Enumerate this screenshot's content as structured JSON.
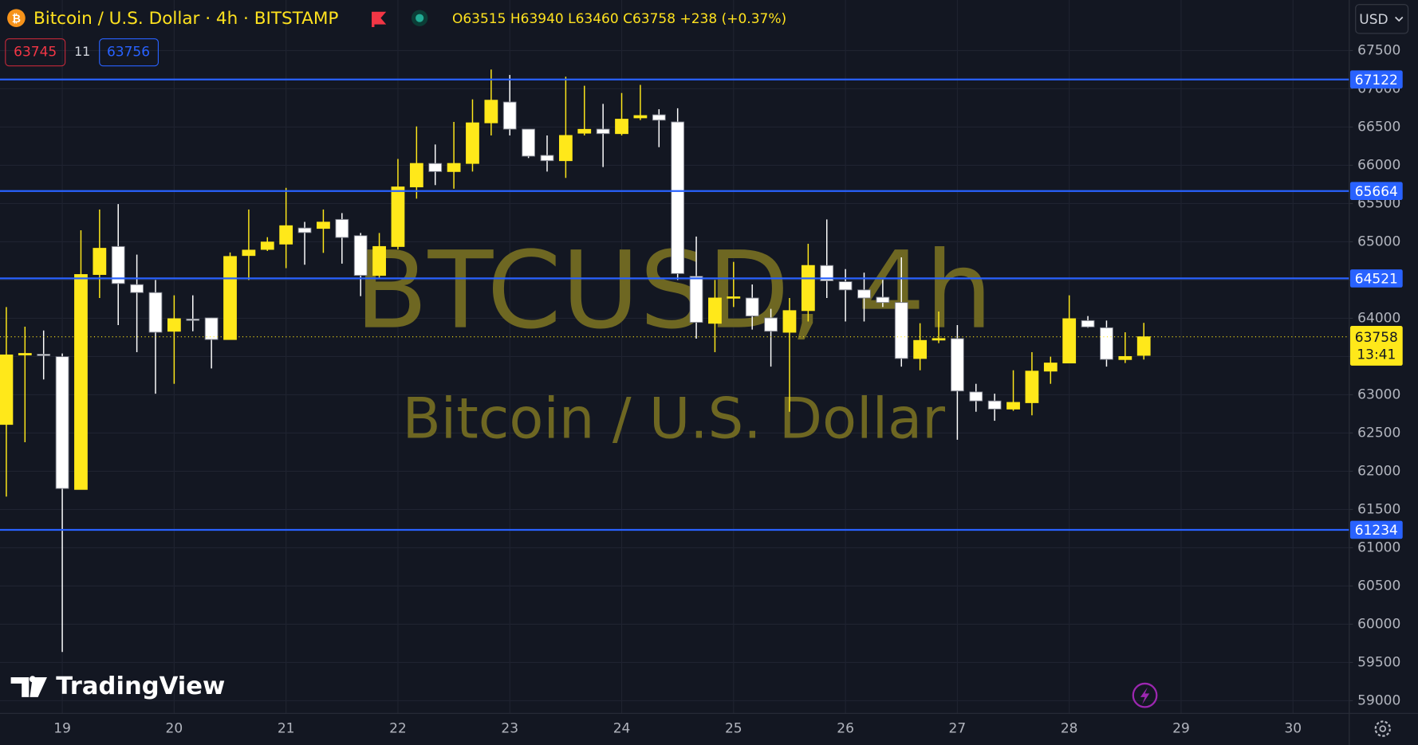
{
  "header": {
    "title": "Bitcoin / U.S. Dollar · 4h · BITSTAMP",
    "ohlc": "O63515 H63940 L63460 C63758 +238 (+0.37%)",
    "bid": "63745",
    "spread": "11",
    "ask": "63756",
    "currency": "USD",
    "brand": "TradingView"
  },
  "chart_data": {
    "type": "candlestick",
    "watermark": {
      "symbol": "BTCUSD, 4h",
      "description": "Bitcoin / U.S. Dollar"
    },
    "categories": [
      null,
      null,
      null,
      "19",
      null,
      null,
      null,
      null,
      null,
      "20",
      null,
      null,
      null,
      null,
      null,
      "21",
      null,
      null,
      null,
      null,
      null,
      "22",
      null,
      null,
      null,
      null,
      null,
      "23",
      null,
      null,
      null,
      null,
      null,
      "24",
      null,
      null,
      null,
      null,
      null,
      "25",
      null,
      null,
      null,
      null,
      null,
      "26",
      null,
      null,
      null,
      null,
      null,
      "27",
      null,
      null,
      null,
      null,
      null,
      "28",
      null,
      null,
      null,
      null,
      null,
      "29",
      null,
      null,
      null,
      null,
      null,
      "30",
      null,
      null,
      null
    ],
    "open": [
      62612,
      63520,
      63530,
      63498,
      61762,
      64572,
      64938,
      64440,
      64336,
      63830,
      63990,
      64005,
      63722,
      64820,
      64900,
      64970,
      65180,
      65175,
      65292,
      65080,
      64560,
      64938,
      65717,
      66024,
      65918,
      66024,
      66555,
      66827,
      66473,
      66130,
      66060,
      66420,
      66473,
      66414,
      66620,
      66660,
      66567,
      64548,
      63934,
      64270,
      64265,
      64005,
      63817,
      64100,
      64690,
      64478,
      64371,
      64275,
      64206,
      63474,
      63715,
      63734,
      63037,
      62919,
      62813,
      62896,
      63309,
      63415,
      63970,
      63876,
      63460,
      63515,
      null,
      null,
      null,
      null,
      null,
      null,
      null,
      null,
      null,
      null,
      null
    ],
    "high": [
      64147,
      63890,
      63840,
      63540,
      65151,
      65422,
      65493,
      64832,
      64501,
      64300,
      64300,
      64010,
      64860,
      65422,
      65060,
      65705,
      65260,
      65422,
      65375,
      65115,
      65115,
      66083,
      66508,
      66272,
      66567,
      66862,
      67252,
      67181,
      66473,
      66390,
      67158,
      67040,
      66803,
      66945,
      67051,
      66733,
      66745,
      65068,
      64501,
      64737,
      64442,
      64123,
      64265,
      64974,
      65292,
      64643,
      64596,
      64501,
      64796,
      63935,
      64088,
      63911,
      63143,
      63014,
      63320,
      63557,
      63498,
      64300,
      64029,
      63970,
      63817,
      63940,
      null,
      null,
      null,
      null,
      null,
      null,
      null,
      null,
      null,
      null,
      null
    ],
    "low": [
      61668,
      62380,
      63200,
      59637,
      61762,
      64265,
      63911,
      63557,
      63014,
      63143,
      63830,
      63344,
      63720,
      64501,
      64880,
      64655,
      64700,
      64855,
      64714,
      64289,
      64525,
      64900,
      65564,
      65741,
      65694,
      65918,
      66390,
      66390,
      66095,
      65918,
      65835,
      66390,
      65977,
      66390,
      66591,
      66237,
      64501,
      63734,
      63557,
      64147,
      63852,
      63368,
      62778,
      63958,
      64265,
      63958,
      63958,
      64147,
      63368,
      63320,
      63675,
      62412,
      62778,
      62660,
      62790,
      62731,
      63143,
      63415,
      63876,
      63368,
      63415,
      63460,
      null,
      null,
      null,
      null,
      null,
      null,
      null,
      null,
      null,
      null,
      null
    ],
    "close": [
      63521,
      63540,
      63520,
      61774,
      64572,
      64915,
      64454,
      64336,
      63817,
      63994,
      63985,
      63722,
      64808,
      64891,
      64997,
      65210,
      65120,
      65257,
      65056,
      64560,
      64938,
      65717,
      66024,
      65918,
      66024,
      66555,
      66851,
      66473,
      66119,
      66060,
      66390,
      66470,
      66414,
      66603,
      66650,
      66590,
      64584,
      63946,
      64265,
      64280,
      64029,
      63830,
      64100,
      64690,
      64490,
      64371,
      64265,
      64206,
      63474,
      63710,
      63735,
      63049,
      62919,
      62813,
      62900,
      63309,
      63415,
      63994,
      63887,
      63462,
      63500,
      63758,
      null,
      null,
      null,
      null,
      null,
      null,
      null,
      null,
      null,
      null,
      null
    ],
    "up_color": "#ffe81a",
    "down_color": "#ffffff",
    "ylim": [
      58834,
      68161
    ],
    "yticks": [
      59000,
      59500,
      60000,
      60500,
      61000,
      61500,
      62000,
      62500,
      63000,
      63500,
      64000,
      64500,
      65000,
      65500,
      66000,
      66500,
      67000,
      67500
    ],
    "grid": true,
    "hlines": [
      {
        "value": 67122,
        "color": "#2962ff"
      },
      {
        "value": 65664,
        "color": "#2962ff"
      },
      {
        "value": 64521,
        "color": "#2962ff"
      },
      {
        "value": 61234,
        "color": "#2962ff"
      }
    ],
    "last_price": {
      "value": 63758,
      "countdown": "13:41",
      "color": "#ffe81a"
    }
  }
}
